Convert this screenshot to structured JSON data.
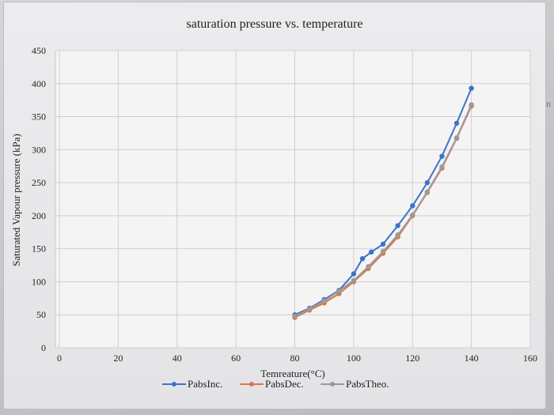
{
  "chart_data": {
    "type": "scatter",
    "title": "saturation pressure vs. temperature",
    "xlabel": "Temreature(°C)",
    "ylabel": "Saturated Vapour pressure (kPa)",
    "xlim": [
      0,
      160
    ],
    "ylim": [
      0,
      450
    ],
    "xticks": [
      0,
      20,
      40,
      60,
      80,
      100,
      120,
      140,
      160
    ],
    "yticks": [
      0,
      50,
      100,
      150,
      200,
      250,
      300,
      350,
      400,
      450
    ],
    "grid": true,
    "legend": "bottom",
    "lines": true,
    "markers": true,
    "series": [
      {
        "name": "PabsInc.",
        "color": "#3f72c6",
        "x": [
          80,
          85,
          90,
          95,
          100,
          103,
          106,
          110,
          115,
          120,
          125,
          130,
          135,
          140
        ],
        "y": [
          50,
          60,
          73,
          87,
          112,
          135,
          145,
          157,
          185,
          215,
          250,
          290,
          340,
          393
        ]
      },
      {
        "name": "PabsDec.",
        "color": "#d9774a",
        "x": [
          80,
          85,
          90,
          95,
          100,
          105,
          110,
          115,
          120,
          125,
          130,
          135,
          140
        ],
        "y": [
          46,
          57,
          68,
          82,
          100,
          120,
          143,
          168,
          200,
          235,
          272,
          317,
          366
        ]
      },
      {
        "name": "PabsTheo.",
        "color": "#9a9a9a",
        "x": [
          80,
          85,
          90,
          95,
          100,
          105,
          110,
          115,
          120,
          125,
          130,
          135,
          140
        ],
        "y": [
          48,
          59,
          71,
          86,
          102,
          123,
          146,
          171,
          201,
          236,
          274,
          318,
          368
        ]
      }
    ]
  },
  "stray_text": "n"
}
